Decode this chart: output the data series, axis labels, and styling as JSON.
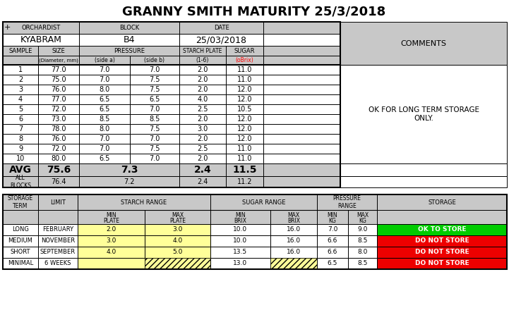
{
  "title": "GRANNY SMITH MATURITY 25/3/2018",
  "orchardist": "KYABRAM",
  "block": "B4",
  "date": "25/03/2018",
  "comment": "OK FOR LONG TERM STORAGE\nONLY.",
  "samples": [
    1,
    2,
    3,
    4,
    5,
    6,
    7,
    8,
    9,
    10
  ],
  "size": [
    77.0,
    75.0,
    76.0,
    77.0,
    72.0,
    73.0,
    78.0,
    76.0,
    72.0,
    80.0
  ],
  "pressure_a": [
    7.0,
    7.0,
    8.0,
    6.5,
    6.5,
    8.5,
    8.0,
    7.0,
    7.0,
    6.5
  ],
  "pressure_b": [
    7.0,
    7.5,
    7.5,
    6.5,
    7.0,
    8.5,
    7.5,
    7.0,
    7.5,
    7.0
  ],
  "starch": [
    2.0,
    2.0,
    2.0,
    4.0,
    2.5,
    2.0,
    3.0,
    2.0,
    2.5,
    2.0
  ],
  "sugar": [
    11.0,
    11.0,
    12.0,
    12.0,
    10.5,
    12.0,
    12.0,
    12.0,
    11.0,
    11.0
  ],
  "avg_size": "75.6",
  "avg_pressure": "7.3",
  "avg_starch": "2.4",
  "avg_sugar": "11.5",
  "allblocks_size": "76.4",
  "allblocks_pressure": "7.2",
  "allblocks_starch": "2.4",
  "allblocks_sugar": "11.2",
  "storage_rows": [
    {
      "term": "LONG",
      "limit": "FEBRUARY",
      "min_plate": "2.0",
      "max_plate": "3.0",
      "min_brix": "10.0",
      "max_brix": "16.0",
      "min_kg": "7.0",
      "max_kg": "9.0",
      "status": "OK TO STORE",
      "status_color": "#00cc00"
    },
    {
      "term": "MEDIUM",
      "limit": "NOVEMBER",
      "min_plate": "3.0",
      "max_plate": "4.0",
      "min_brix": "10.0",
      "max_brix": "16.0",
      "min_kg": "6.6",
      "max_kg": "8.5",
      "status": "DO NOT STORE",
      "status_color": "#ee0000"
    },
    {
      "term": "SHORT",
      "limit": "SEPTEMBER",
      "min_plate": "4.0",
      "max_plate": "5.0",
      "min_brix": "13.5",
      "max_brix": "16.0",
      "min_kg": "6.6",
      "max_kg": "8.0",
      "status": "DO NOT STORE",
      "status_color": "#ee0000"
    },
    {
      "term": "MINIMAL",
      "limit": "6 WEEKS",
      "min_plate": "",
      "max_plate": "",
      "min_brix": "13.0",
      "max_brix": "",
      "min_kg": "6.5",
      "max_kg": "8.5",
      "status": "DO NOT STORE",
      "status_color": "#ee0000"
    }
  ],
  "gray": "#c8c8c8",
  "white": "#ffffff",
  "yellow": "#ffff99",
  "black": "#000000"
}
